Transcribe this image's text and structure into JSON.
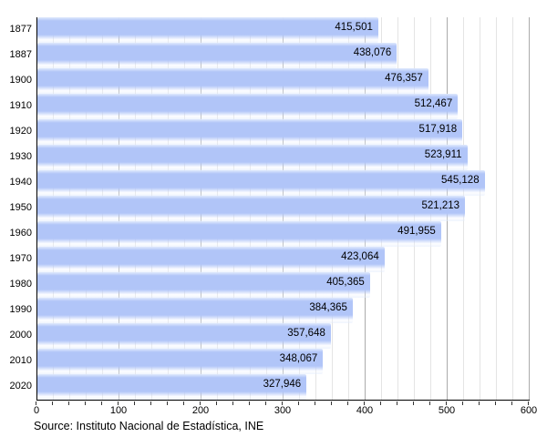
{
  "chart_data": {
    "type": "bar",
    "orientation": "horizontal",
    "title": "",
    "xlabel": "",
    "ylabel": "",
    "categories": [
      "1877",
      "1887",
      "1900",
      "1910",
      "1920",
      "1930",
      "1940",
      "1950",
      "1960",
      "1970",
      "1980",
      "1990",
      "2000",
      "2010",
      "2020"
    ],
    "values": [
      415501,
      438076,
      476357,
      512467,
      517918,
      523911,
      545128,
      521213,
      491955,
      423064,
      405365,
      384365,
      357648,
      348067,
      327946
    ],
    "value_labels": [
      "415,501",
      "438,076",
      "476,357",
      "512,467",
      "517,918",
      "523,911",
      "545,128",
      "521,213",
      "491,955",
      "423,064",
      "405,365",
      "384,365",
      "357,648",
      "348,067",
      "327,946"
    ],
    "xlim": [
      0,
      600000
    ],
    "x_tick_labels": [
      "0",
      "100",
      "200",
      "300",
      "400",
      "500",
      "600"
    ],
    "x_tick_values": [
      0,
      100000,
      200000,
      300000,
      400000,
      500000,
      600000
    ],
    "grid": "vertical; minor line every 20,000, major line every 100,000",
    "legend": "none",
    "colors": {
      "bar": "#b1c5f8",
      "bar_edge_light": "#dfe9fd",
      "grid_minor": "#e4e4e4",
      "grid_major": "#ababab",
      "axis": "#000000",
      "text": "#000000"
    }
  },
  "source_note": "Source: Instituto Nacional de Estadística, INE"
}
